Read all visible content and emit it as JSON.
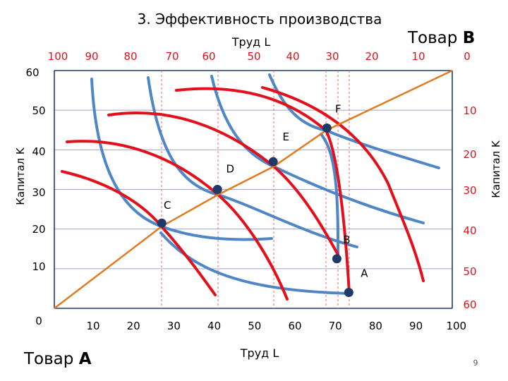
{
  "title": "3. Эффективность производства",
  "good_a_label": "Товар",
  "good_a_letter": "A",
  "good_b_label": "Товар",
  "good_b_letter": "B",
  "labor_top_label": "Труд L",
  "labor_bottom_label": "Труд L",
  "capital_left_label": "Капитал K",
  "capital_right_label": "Капитал K",
  "page_number": "9",
  "colors": {
    "red": "#e3101b",
    "blue": "#4f86c6",
    "orange": "#e07b20",
    "navy": "#1f3a68",
    "grid": "#9fa8c7",
    "guide": "#e46a6a"
  },
  "chart_data": {
    "type": "diagram",
    "bottom_labor_ticks": [
      "10",
      "20",
      "30",
      "40",
      "50",
      "60",
      "70",
      "80",
      "90",
      "100"
    ],
    "top_labor_ticks": [
      "100",
      "90",
      "80",
      "70",
      "60",
      "50",
      "40",
      "30",
      "20",
      "10",
      "0"
    ],
    "left_capital_ticks": [
      "0",
      "10",
      "20",
      "30",
      "40",
      "50",
      "60"
    ],
    "right_capital_ticks": [
      "10",
      "20",
      "30",
      "40",
      "50",
      "60"
    ],
    "points": [
      {
        "label": "A",
        "L": 74,
        "K": 4
      },
      {
        "label": "B",
        "L": 71,
        "K": 12.5
      },
      {
        "label": "C",
        "L": 27,
        "K": 21.5
      },
      {
        "label": "D",
        "L": 41,
        "K": 30
      },
      {
        "label": "E",
        "L": 55,
        "K": 37
      },
      {
        "label": "F",
        "L": 68.5,
        "K": 45.5
      }
    ],
    "contract_curve": "orange line through C, D, E, F from origin A to origin B"
  }
}
